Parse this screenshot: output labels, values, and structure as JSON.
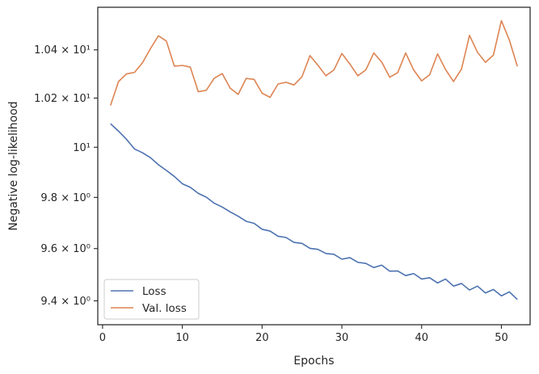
{
  "chart_data": {
    "type": "line",
    "xlabel": "Epochs",
    "ylabel": "Negative log-likelihood",
    "xlim": [
      -0.6,
      53.6
    ],
    "ylim": [
      9.31,
      10.58
    ],
    "y_scale": "log",
    "grid": false,
    "legend_position": "lower-left",
    "x_ticks": [
      {
        "value": 0,
        "label": "0"
      },
      {
        "value": 10,
        "label": "10"
      },
      {
        "value": 20,
        "label": "20"
      },
      {
        "value": 30,
        "label": "30"
      },
      {
        "value": 40,
        "label": "40"
      },
      {
        "value": 50,
        "label": "50"
      }
    ],
    "y_ticks": [
      {
        "value": 9.4,
        "label": "9.4 × 10⁰"
      },
      {
        "value": 9.6,
        "label": "9.6 × 10⁰"
      },
      {
        "value": 9.8,
        "label": "9.8 × 10⁰"
      },
      {
        "value": 10.0,
        "label": "10¹"
      },
      {
        "value": 10.2,
        "label": "1.02 × 10¹"
      },
      {
        "value": 10.4,
        "label": "1.04 × 10¹"
      }
    ],
    "x": [
      1,
      2,
      3,
      4,
      5,
      6,
      7,
      8,
      9,
      10,
      11,
      12,
      13,
      14,
      15,
      16,
      17,
      18,
      19,
      20,
      21,
      22,
      23,
      24,
      25,
      26,
      27,
      28,
      29,
      30,
      31,
      32,
      33,
      34,
      35,
      36,
      37,
      38,
      39,
      40,
      41,
      42,
      43,
      44,
      45,
      46,
      47,
      48,
      49,
      50,
      51,
      52
    ],
    "series": [
      {
        "name": "Loss",
        "color": "#4c72b0",
        "values": [
          10.095,
          10.065,
          10.032,
          9.993,
          9.978,
          9.958,
          9.93,
          9.907,
          9.883,
          9.854,
          9.84,
          9.816,
          9.801,
          9.777,
          9.762,
          9.743,
          9.726,
          9.706,
          9.698,
          9.675,
          9.668,
          9.648,
          9.643,
          9.624,
          9.62,
          9.601,
          9.597,
          9.581,
          9.578,
          9.559,
          9.565,
          9.547,
          9.543,
          9.527,
          9.536,
          9.513,
          9.514,
          9.496,
          9.504,
          9.483,
          9.488,
          9.468,
          9.483,
          9.456,
          9.466,
          9.441,
          9.456,
          9.43,
          9.443,
          9.419,
          9.434,
          9.405
        ]
      },
      {
        "name": "Val. loss",
        "color": "#dd8452",
        "values": [
          10.17,
          10.268,
          10.3,
          10.306,
          10.346,
          10.405,
          10.459,
          10.437,
          10.332,
          10.335,
          10.328,
          10.226,
          10.232,
          10.282,
          10.301,
          10.241,
          10.215,
          10.281,
          10.277,
          10.22,
          10.203,
          10.258,
          10.265,
          10.254,
          10.288,
          10.376,
          10.336,
          10.292,
          10.316,
          10.385,
          10.341,
          10.292,
          10.316,
          10.387,
          10.349,
          10.286,
          10.305,
          10.387,
          10.316,
          10.271,
          10.296,
          10.383,
          10.318,
          10.268,
          10.32,
          10.461,
          10.39,
          10.348,
          10.378,
          10.523,
          10.441,
          10.331
        ]
      }
    ]
  }
}
